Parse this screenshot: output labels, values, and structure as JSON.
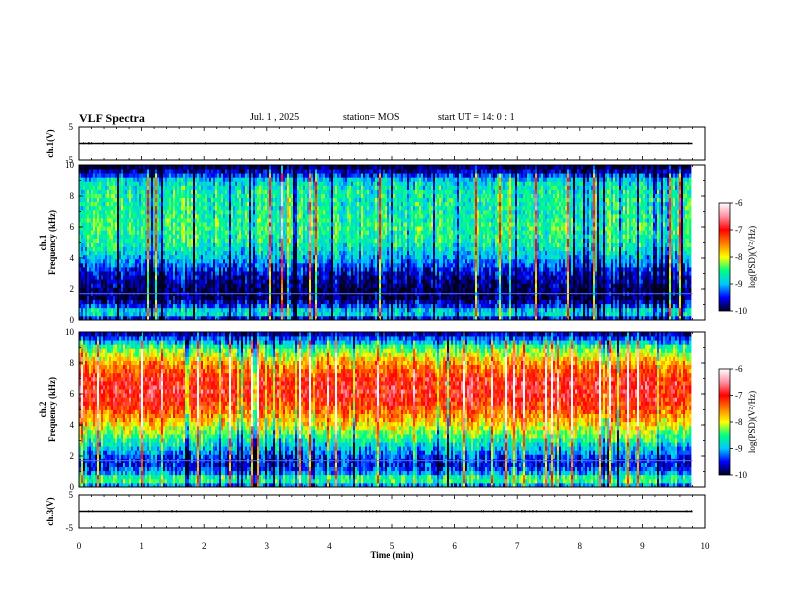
{
  "header": {
    "title": "VLF Spectra",
    "date": "Jul. 1 , 2025",
    "station": "station= MOS",
    "start_ut": "start UT = 14: 0 : 1"
  },
  "chart_data": {
    "type": "heatmap",
    "title": "VLF Spectra",
    "x_axis": {
      "label": "Time (min)",
      "range": [
        0,
        10
      ],
      "ticks": [
        "0",
        "1",
        "2",
        "3",
        "4",
        "5",
        "6",
        "7",
        "8",
        "9",
        "10"
      ]
    },
    "panels": [
      {
        "name": "ch.1(V)",
        "kind": "waveform",
        "ylabel": "ch.1(V)",
        "ylim": [
          -5,
          5
        ],
        "yticks": [
          "5",
          "-5"
        ],
        "level": 0
      },
      {
        "name": "ch.1 Frequency (kHz)",
        "kind": "spectrogram",
        "ylabel_top": "ch.1",
        "ylabel": "Frequency (kHz)",
        "ylim": [
          0,
          10
        ],
        "yticks": [
          "0",
          "2",
          "4",
          "6",
          "8",
          "10"
        ],
        "data_end_min": 9.8,
        "profile_kHz": [
          0,
          0.5,
          1,
          1.5,
          2,
          3,
          4,
          5,
          6,
          7,
          8,
          9,
          9.5,
          10
        ],
        "profile_logPSD": [
          -9.8,
          -8.6,
          -9.5,
          -9.9,
          -9.9,
          -9.6,
          -9.0,
          -8.6,
          -8.5,
          -8.6,
          -8.6,
          -8.8,
          -9.6,
          -10.0
        ]
      },
      {
        "name": "ch.2 Frequency (kHz)",
        "kind": "spectrogram",
        "ylabel_top": "ch.2",
        "ylabel": "Frequency (kHz)",
        "ylim": [
          0,
          10
        ],
        "yticks": [
          "0",
          "2",
          "4",
          "6",
          "8",
          "10"
        ],
        "data_end_min": 9.8,
        "profile_kHz": [
          0,
          0.5,
          1,
          1.5,
          2,
          3,
          4,
          5,
          6,
          7,
          8,
          9,
          9.5,
          10
        ],
        "profile_logPSD": [
          -9.4,
          -8.3,
          -9.2,
          -9.5,
          -9.3,
          -8.6,
          -7.9,
          -7.3,
          -6.9,
          -7.0,
          -7.6,
          -8.4,
          -9.2,
          -9.8
        ]
      },
      {
        "name": "ch.3(V)",
        "kind": "waveform",
        "ylabel": "ch.3(V)",
        "ylim": [
          -5,
          5
        ],
        "yticks": [
          "5",
          "-5"
        ],
        "level": 0
      }
    ],
    "colorbar": {
      "label": "log(PSD)(V²/Hz)",
      "range": [
        -10,
        -6
      ],
      "ticks": [
        "-6",
        "-7",
        "-8",
        "-9",
        "-10"
      ],
      "colormap": [
        "#00001e",
        "#0000ff",
        "#00c8ff",
        "#00ff80",
        "#ffff00",
        "#ff8000",
        "#ff0000",
        "#ff90a0",
        "#ffffff"
      ]
    }
  }
}
